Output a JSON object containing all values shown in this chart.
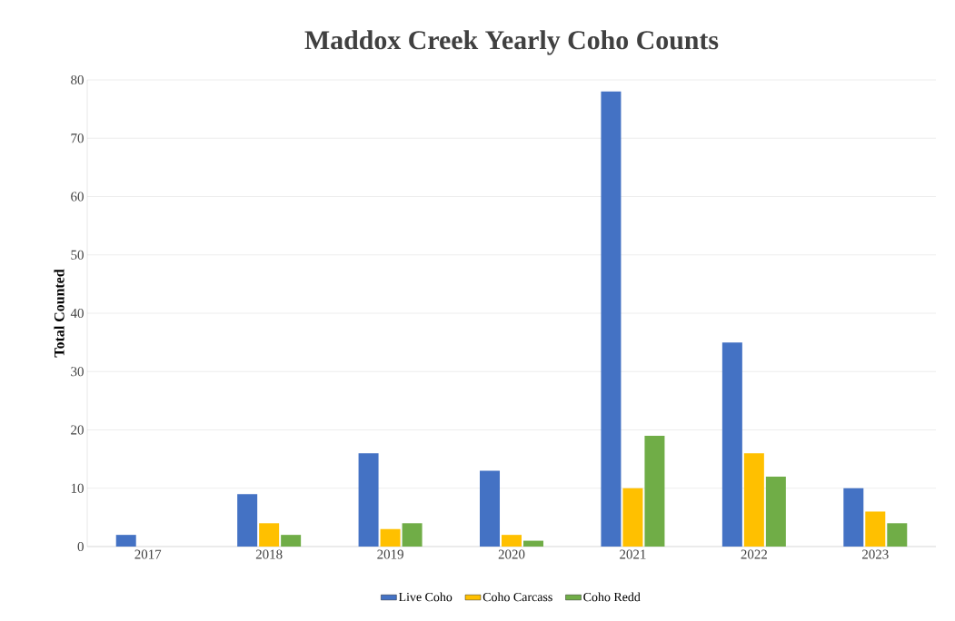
{
  "chart_data": {
    "type": "bar",
    "title": "Maddox Creek Yearly Coho Counts",
    "ylabel": "Total Counted",
    "categories": [
      "2017",
      "2018",
      "2019",
      "2020",
      "2021",
      "2022",
      "2023"
    ],
    "series": [
      {
        "name": "Live Coho",
        "color": "#4472c4",
        "values": [
          2,
          9,
          16,
          13,
          78,
          35,
          10
        ]
      },
      {
        "name": "Coho Carcass",
        "color": "#ffc000",
        "values": [
          0,
          4,
          3,
          2,
          10,
          16,
          6
        ]
      },
      {
        "name": "Coho Redd",
        "color": "#70ad47",
        "values": [
          0,
          2,
          4,
          1,
          19,
          12,
          4
        ]
      }
    ],
    "ylim": [
      0,
      80
    ],
    "yticks": [
      0,
      10,
      20,
      30,
      40,
      50,
      60,
      70,
      80
    ],
    "grid": "y",
    "legend": "bottom"
  }
}
